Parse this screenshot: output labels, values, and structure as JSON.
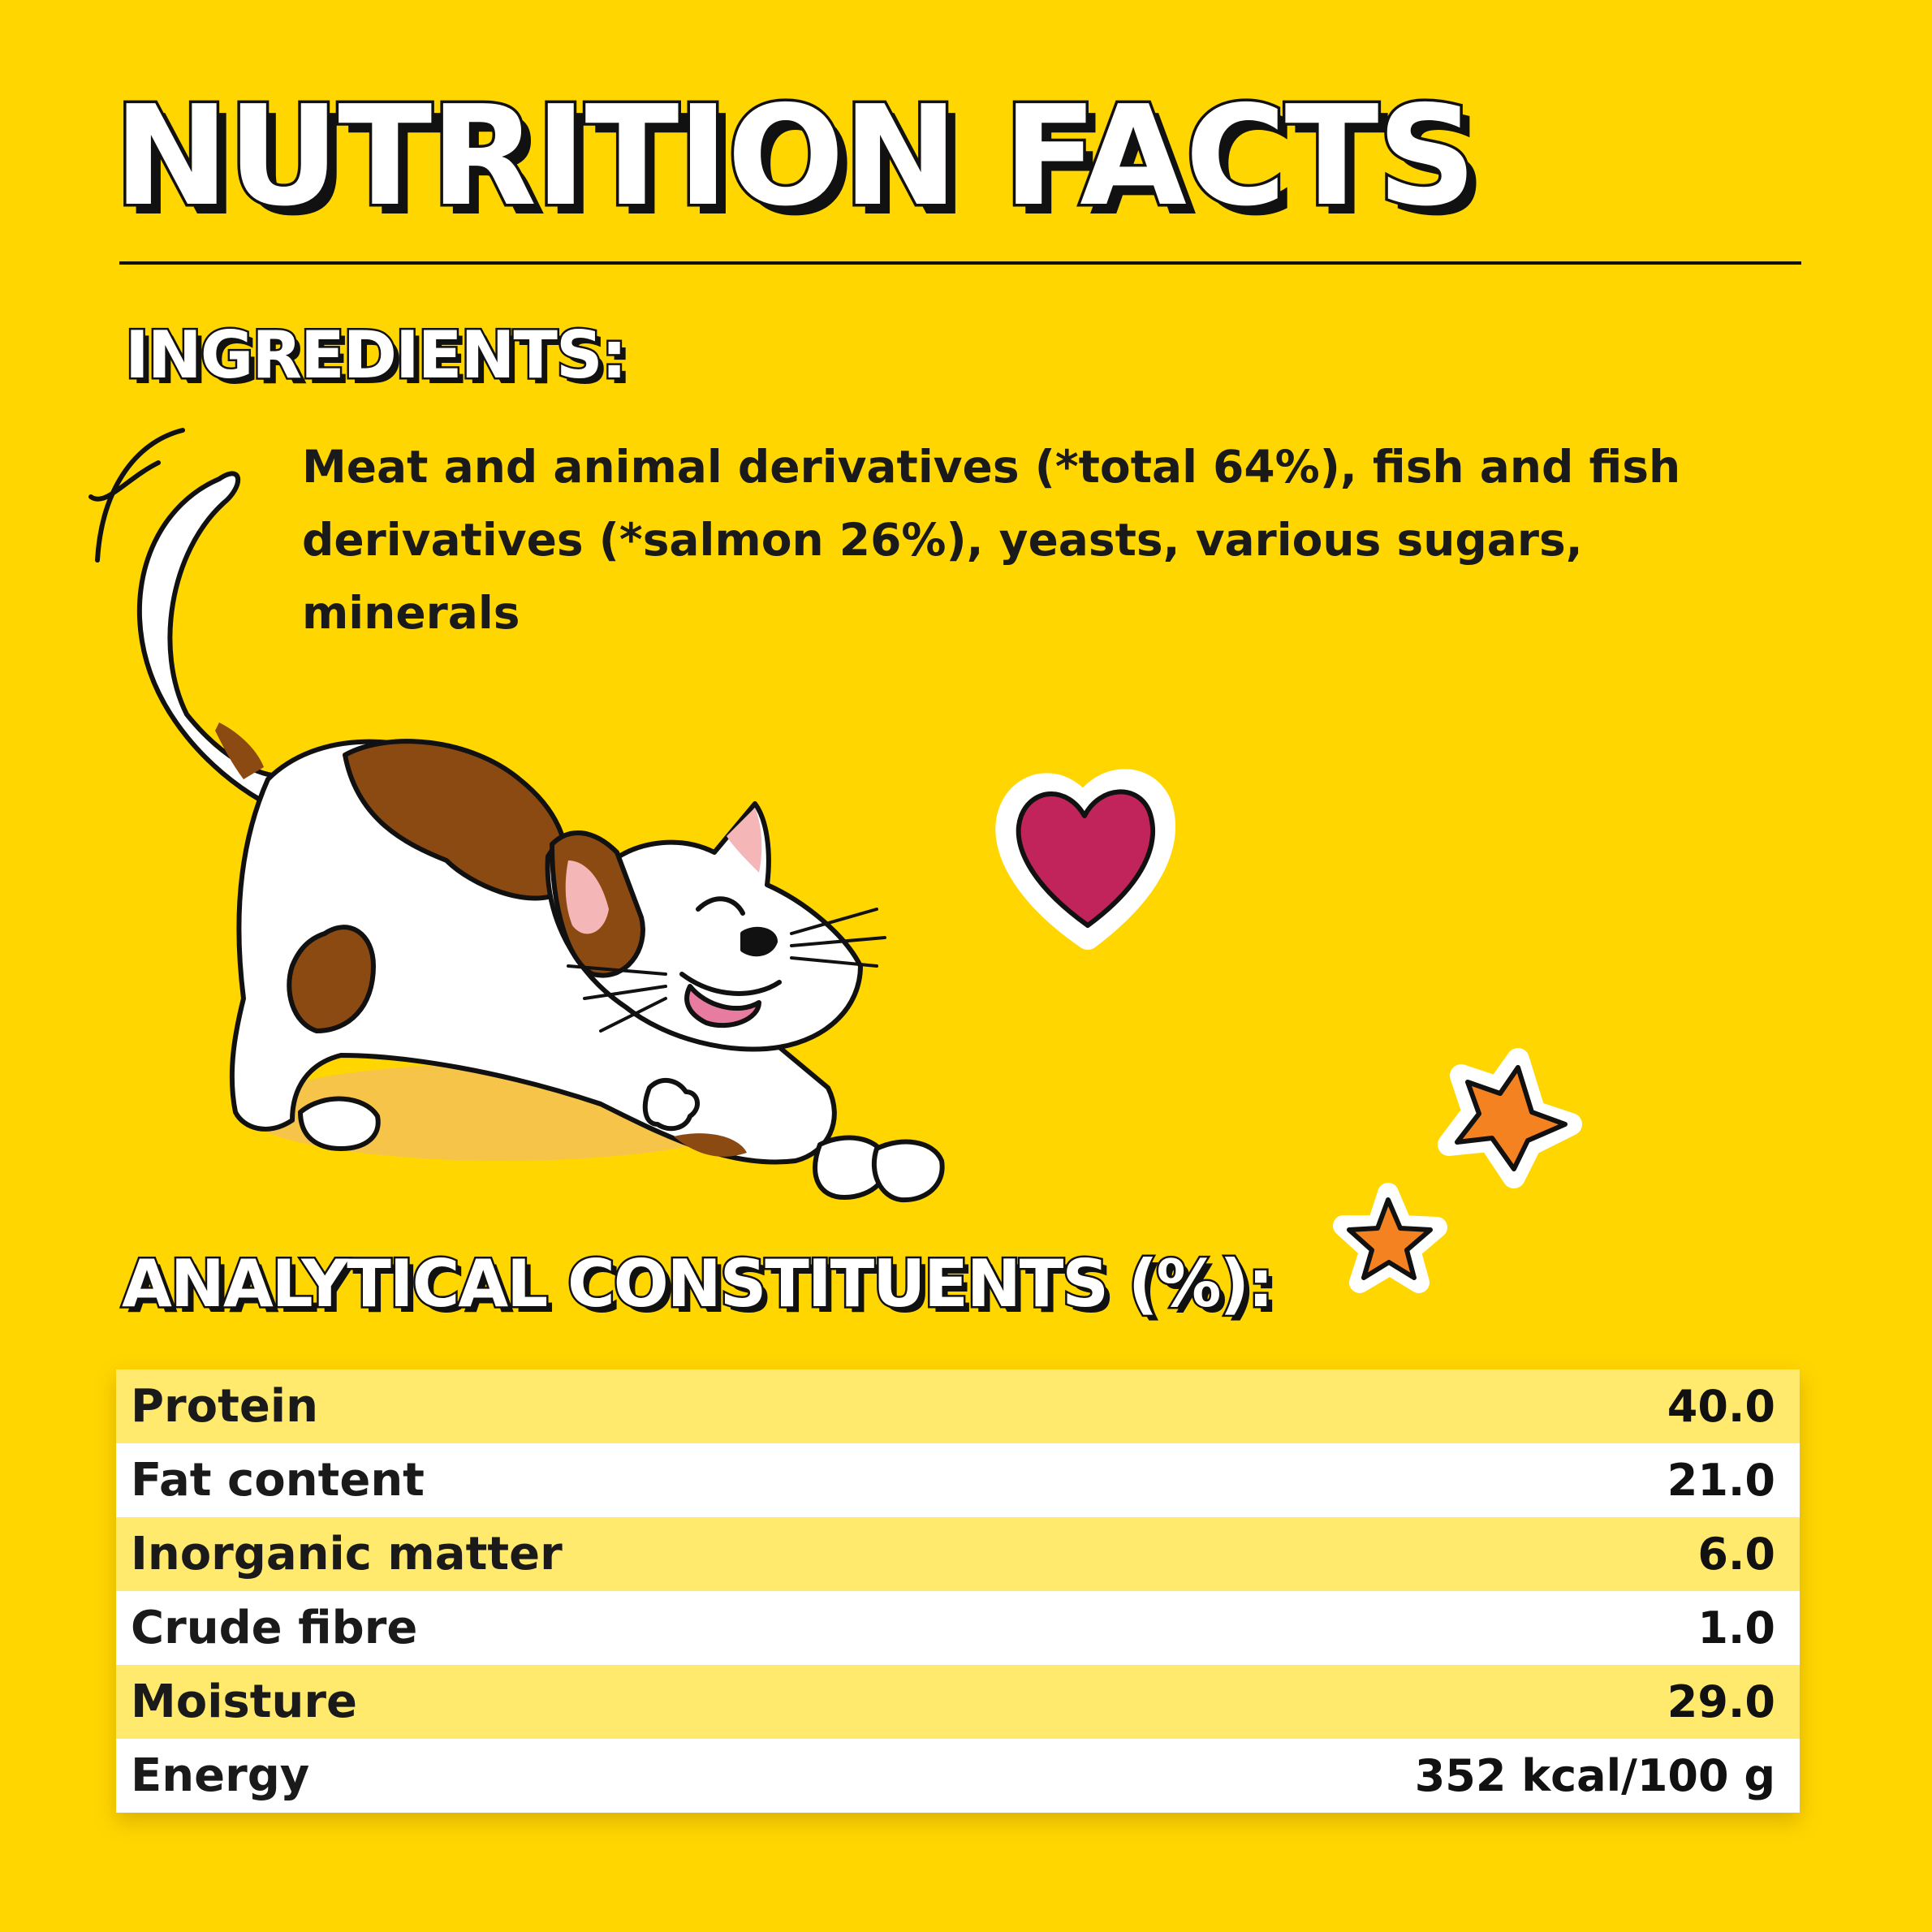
{
  "title": "NUTRITION FACTS",
  "ingredients": {
    "heading": "INGREDIENTS:",
    "text": "Meat and animal derivatives (*total 64%), fish and fish derivatives (*salmon 26%), yeasts, various sugars, minerals"
  },
  "constituents": {
    "heading": "ANALYTICAL CONSTITUENTS (%):",
    "rows": [
      {
        "label": "Protein",
        "value": "40.0"
      },
      {
        "label": "Fat content",
        "value": "21.0"
      },
      {
        "label": "Inorganic matter",
        "value": "6.0"
      },
      {
        "label": "Crude fibre",
        "value": "1.0"
      },
      {
        "label": "Moisture",
        "value": "29.0"
      },
      {
        "label": "Energy",
        "value": "352 kcal/100 g"
      }
    ]
  },
  "colors": {
    "background": "#FFD600",
    "row_alt": "#FFEA6E",
    "row_plain": "#FFFFFF",
    "heart": "#C0245A",
    "star": "#F58220",
    "cat_patch": "#8B4A12"
  },
  "decorations": [
    "cat-illustration",
    "heart-icon",
    "star-icon",
    "star-icon"
  ]
}
